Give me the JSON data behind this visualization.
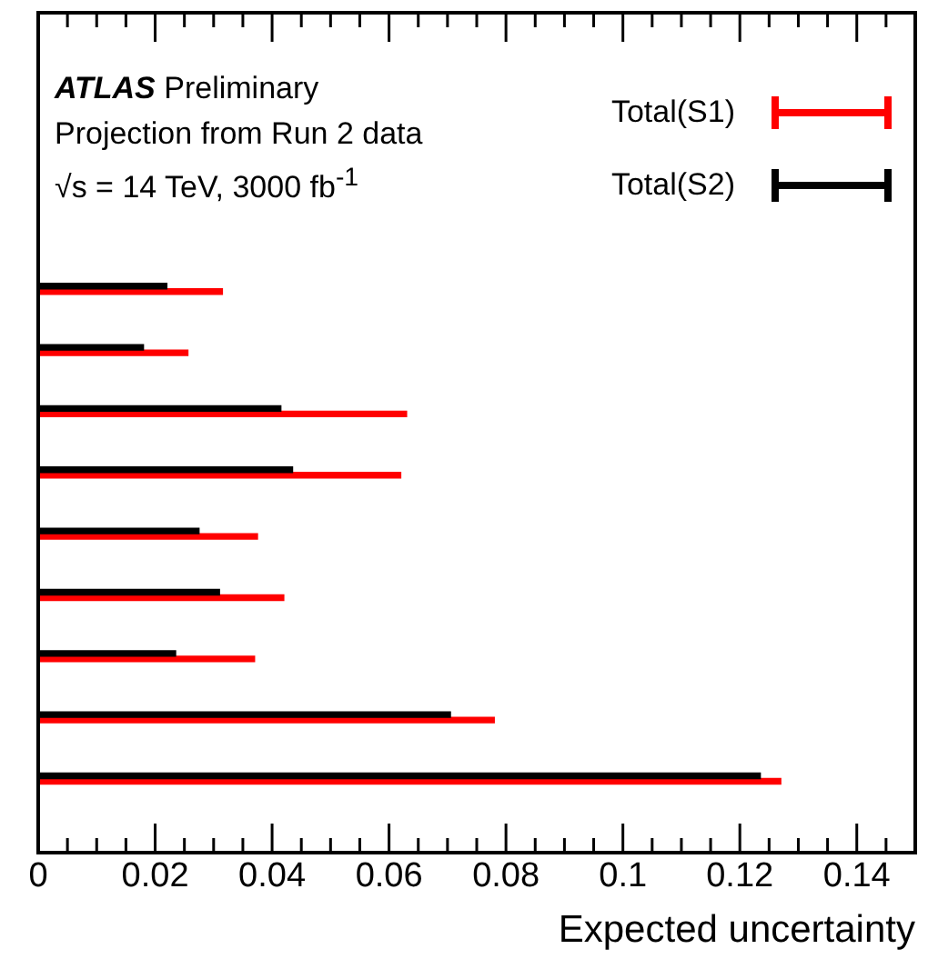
{
  "chart_data": {
    "type": "bar",
    "orientation": "horizontal",
    "xlabel": "Expected uncertainty",
    "annotations": [
      "ATLAS Preliminary",
      "Projection from Run 2 data",
      "√s = 14 TeV, 3000 fb$^{-1}$"
    ],
    "categories": [
      null,
      null,
      null,
      null,
      null,
      null,
      null,
      null,
      null
    ],
    "series": [
      {
        "name": "Total(S1)",
        "color": "#ff0000",
        "values": [
          0.0315,
          0.0256,
          0.063,
          0.062,
          0.0375,
          0.042,
          0.037,
          0.078,
          0.127
        ]
      },
      {
        "name": "Total(S2)",
        "color": "#000000",
        "values": [
          0.022,
          0.018,
          0.0415,
          0.0435,
          0.0275,
          0.031,
          0.0235,
          0.0705,
          0.1235
        ]
      }
    ],
    "xlim": [
      0,
      0.15
    ],
    "xticks": [
      0,
      0.02,
      0.04,
      0.06,
      0.08,
      0.1,
      0.12,
      0.14
    ],
    "grid": false,
    "legend": "top right"
  }
}
